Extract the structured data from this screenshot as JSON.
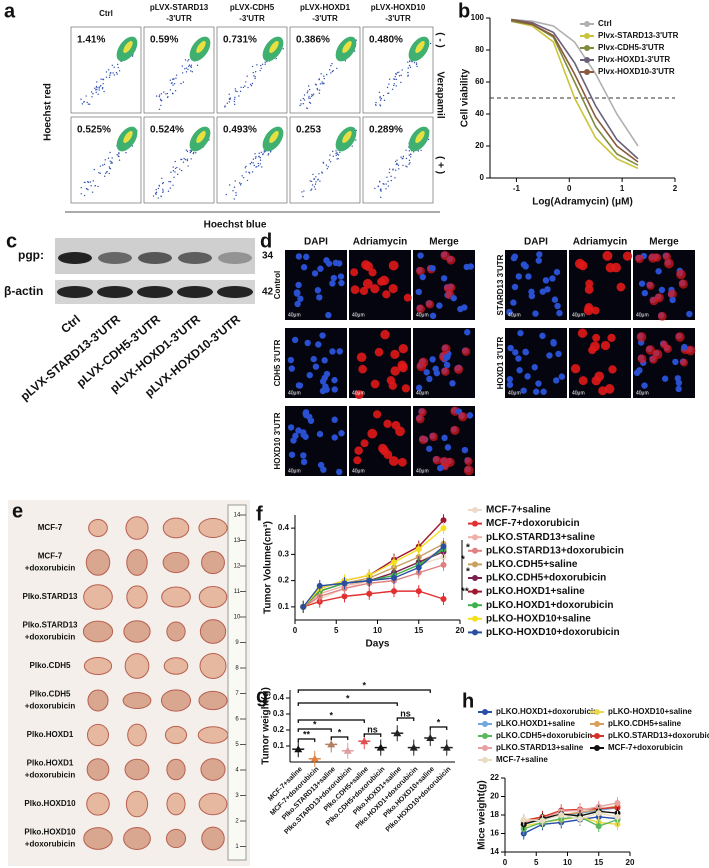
{
  "panels": {
    "a": {
      "label": "a",
      "columns": [
        [
          "Ctrl"
        ],
        [
          "pLVX-STARD13",
          "-3'UTR"
        ],
        [
          "pLVX-CDH5",
          "-3'UTR"
        ],
        [
          "pLVX-HOXD1",
          "-3'UTR"
        ],
        [
          "pLVX-HOXD10",
          "-3'UTR"
        ]
      ],
      "percentages": [
        [
          "1.41%",
          "0.59%",
          "0.731%",
          "0.386%",
          "0.480%"
        ],
        [
          "0.525%",
          "0.524%",
          "0.493%",
          "0.253",
          "0.289%"
        ]
      ],
      "y_label": "Hoechst red",
      "x_label": "Hoechst blue",
      "side_label": "Verapamil",
      "row_labels": [
        "( - )",
        "( + )"
      ]
    },
    "c": {
      "label": "c",
      "bands": [
        "pgp:",
        "β-actin"
      ],
      "sizes": [
        "34",
        "42"
      ],
      "lanes": [
        "Ctrl",
        "pLVX-STARD13-3'UTR",
        "pLVX-CDH5-3'UTR",
        "pLVX-HOXD1-3'UTR",
        "pLVX-HOXD10-3'UTR"
      ]
    },
    "d": {
      "label": "d",
      "channels": [
        "DAPI",
        "Adriamycin",
        "Merge"
      ],
      "rows_left": [
        "Control",
        "CDH5 3'UTR",
        "HOXD10 3'UTR"
      ],
      "rows_right": [
        "STARD13 3'UTR",
        "HOXD1 3'UTR"
      ],
      "scale_bar": "40μm"
    },
    "e": {
      "label": "e",
      "groups": [
        [
          "MCF-7"
        ],
        [
          "MCF-7",
          "+doxorubicin"
        ],
        [
          "Plko.STARD13"
        ],
        [
          "Plko.STARD13",
          "+doxorubicin"
        ],
        [
          "Plko.CDH5"
        ],
        [
          "Plko.CDH5",
          "+doxorubicin"
        ],
        [
          "Plko.HOXD1"
        ],
        [
          "Plko.HOXD1",
          "+doxorubicin"
        ],
        [
          "Plko.HOXD10"
        ],
        [
          "Plko.HOXD10",
          "+doxorubicin"
        ]
      ],
      "ruler": [
        "14",
        "13",
        "12",
        "11",
        "10",
        "9",
        "8",
        "7",
        "6",
        "5",
        "4",
        "3",
        "2",
        "1"
      ]
    }
  },
  "chart_data": [
    {
      "type": "line",
      "label": "b",
      "x_label": "Log(Adramycin) (μM)",
      "y_label": "Cell viability",
      "xlim": [
        -1.5,
        2
      ],
      "xticks": [
        -1,
        0,
        1,
        2
      ],
      "ylim": [
        0,
        100
      ],
      "yticks": [
        0,
        20,
        40,
        60,
        80,
        100
      ],
      "hline": 50,
      "x": [
        -1.1,
        -0.7,
        -0.3,
        0.1,
        0.5,
        0.9,
        1.3
      ],
      "series": [
        {
          "name": "Ctrl",
          "color": "#b0b0b0",
          "values": [
            99,
            98,
            95,
            85,
            65,
            40,
            20
          ]
        },
        {
          "name": "Plvx-STARD13-3'UTR",
          "color": "#c9c43a",
          "values": [
            98,
            95,
            85,
            50,
            25,
            12,
            6
          ]
        },
        {
          "name": "Plvx-CDH5-3'UTR",
          "color": "#7f8a3c",
          "values": [
            98,
            96,
            88,
            60,
            32,
            15,
            8
          ]
        },
        {
          "name": "Plvx-HOXD1-3'UTR",
          "color": "#6b6077",
          "values": [
            99,
            97,
            91,
            72,
            45,
            24,
            12
          ]
        },
        {
          "name": "Plvx-HOXD10-3'UTR",
          "color": "#8b5a3c",
          "values": [
            99,
            96,
            89,
            65,
            38,
            20,
            10
          ]
        }
      ]
    },
    {
      "type": "line",
      "label": "f",
      "x_label": "Days",
      "y_label": "Tumor Volume(cm³)",
      "xlim": [
        0,
        20
      ],
      "xticks": [
        0,
        5,
        10,
        15,
        20
      ],
      "ylim": [
        0.05,
        0.45
      ],
      "yticks": [
        0.1,
        0.2,
        0.3,
        0.4
      ],
      "x": [
        1,
        3,
        6,
        9,
        12,
        15,
        18
      ],
      "annotations": [
        "*",
        "*",
        "*",
        "**"
      ],
      "series": [
        {
          "name": "MCF-7+saline",
          "color": "#efd9c6",
          "values": [
            0.1,
            0.13,
            0.17,
            0.2,
            0.22,
            0.26,
            0.29
          ]
        },
        {
          "name": "MCF-7+doxorubicin",
          "color": "#e03030",
          "values": [
            0.1,
            0.12,
            0.14,
            0.15,
            0.16,
            0.16,
            0.13
          ]
        },
        {
          "name": "pLKO.STARD13+saline",
          "color": "#f0b0a8",
          "values": [
            0.1,
            0.15,
            0.18,
            0.2,
            0.23,
            0.27,
            0.32
          ]
        },
        {
          "name": "pLKO.STARD13+doxorubicin",
          "color": "#e08080",
          "values": [
            0.1,
            0.14,
            0.17,
            0.19,
            0.2,
            0.23,
            0.26
          ]
        },
        {
          "name": "pLKO.CDH5+saline",
          "color": "#c8a060",
          "values": [
            0.1,
            0.16,
            0.19,
            0.21,
            0.25,
            0.29,
            0.34
          ]
        },
        {
          "name": "pLKO.CDH5+doxorubicin",
          "color": "#7a2050",
          "values": [
            0.1,
            0.16,
            0.19,
            0.2,
            0.23,
            0.27,
            0.31
          ]
        },
        {
          "name": "pLKO.HOXD1+saline",
          "color": "#a01830",
          "values": [
            0.1,
            0.17,
            0.2,
            0.22,
            0.28,
            0.33,
            0.43
          ]
        },
        {
          "name": "pLKO.HOXD1+doxorubicin",
          "color": "#3cb04a",
          "values": [
            0.1,
            0.16,
            0.19,
            0.2,
            0.22,
            0.26,
            0.32
          ]
        },
        {
          "name": "pLKO-HOXD10+saline",
          "color": "#f5e020",
          "values": [
            0.1,
            0.17,
            0.2,
            0.22,
            0.27,
            0.32,
            0.4
          ]
        },
        {
          "name": "pLKO-HOXD10+doxorubicin",
          "color": "#2b4fa0",
          "values": [
            0.1,
            0.18,
            0.19,
            0.2,
            0.21,
            0.25,
            0.33
          ]
        }
      ]
    },
    {
      "type": "dot",
      "label": "g",
      "y_label": "Tumor weight(g)",
      "ylim": [
        0,
        0.45
      ],
      "yticks": [
        0.1,
        0.2,
        0.3,
        0.4
      ],
      "categories": [
        "MCF-7+saline",
        "MCF-7+doxorubicin",
        "Plko.STARD13+saline",
        "Plko.STARD13+doxorubicin",
        "Plko.CDH5+saline",
        "Plko.CDH5+doxorubicin",
        "Plko.HOXD1+saline",
        "Plko.HOXD1+doxorubicin",
        "Plko.HOXD10+saline",
        "Plko.HOXD10+doxorubicin"
      ],
      "values": [
        0.08,
        0.02,
        0.11,
        0.07,
        0.13,
        0.09,
        0.18,
        0.09,
        0.15,
        0.09
      ],
      "colors": [
        "#111",
        "#e08040",
        "#b08060",
        "#e0a0a0",
        "#e05050",
        "#111",
        "#222",
        "#222",
        "#222",
        "#222"
      ],
      "annotations": [
        "*",
        "*",
        "*",
        "*",
        "**",
        "*",
        "ns",
        "ns",
        "*"
      ]
    },
    {
      "type": "line",
      "label": "h",
      "x_label": "Days",
      "y_label": "Mice weight(g)",
      "xlim": [
        0,
        20
      ],
      "xticks": [
        0,
        5,
        10,
        15,
        20
      ],
      "ylim": [
        14,
        22
      ],
      "yticks": [
        14,
        16,
        18,
        20,
        22
      ],
      "x": [
        3,
        6,
        9,
        12,
        15,
        18
      ],
      "series": [
        {
          "name": "pLKO.HOXD1+doxorubicin",
          "color": "#2a4fa8",
          "values": [
            16,
            17,
            17.2,
            17.5,
            17.8,
            17.6
          ]
        },
        {
          "name": "pLKO-HOXD10+saline",
          "color": "#e8d84a",
          "values": [
            16.8,
            17.2,
            17.5,
            17.8,
            17.2,
            17
          ]
        },
        {
          "name": "pLKO.HOXD1+saline",
          "color": "#6fa8dc",
          "values": [
            17,
            17.5,
            18,
            18.2,
            18.5,
            18.8
          ]
        },
        {
          "name": "pLKO.CDH5+saline",
          "color": "#d9a05b",
          "values": [
            17,
            17.8,
            18,
            18.3,
            18.6,
            19
          ]
        },
        {
          "name": "pLKO.CDH5+doxorubicin",
          "color": "#5cb85c",
          "values": [
            16.5,
            17.2,
            17.6,
            17.8,
            16.8,
            17.5
          ]
        },
        {
          "name": "pLKO.STARD13+doxorubicin",
          "color": "#d73027",
          "values": [
            17.4,
            17.8,
            18.5,
            18.6,
            18.7,
            18.8
          ]
        },
        {
          "name": "pLKO.STARD13+saline",
          "color": "#e8a0a0",
          "values": [
            17.2,
            17.6,
            18.4,
            18.5,
            18.9,
            19.3
          ]
        },
        {
          "name": "MCF-7+doxorubicin",
          "color": "#111111",
          "values": [
            17,
            17.6,
            18.1,
            17.9,
            18.4,
            18.2
          ]
        },
        {
          "name": "MCF-7+saline",
          "color": "#e8dcc0",
          "values": [
            17.5,
            17.4,
            18,
            17.6,
            18.2,
            17.8
          ]
        }
      ]
    }
  ]
}
